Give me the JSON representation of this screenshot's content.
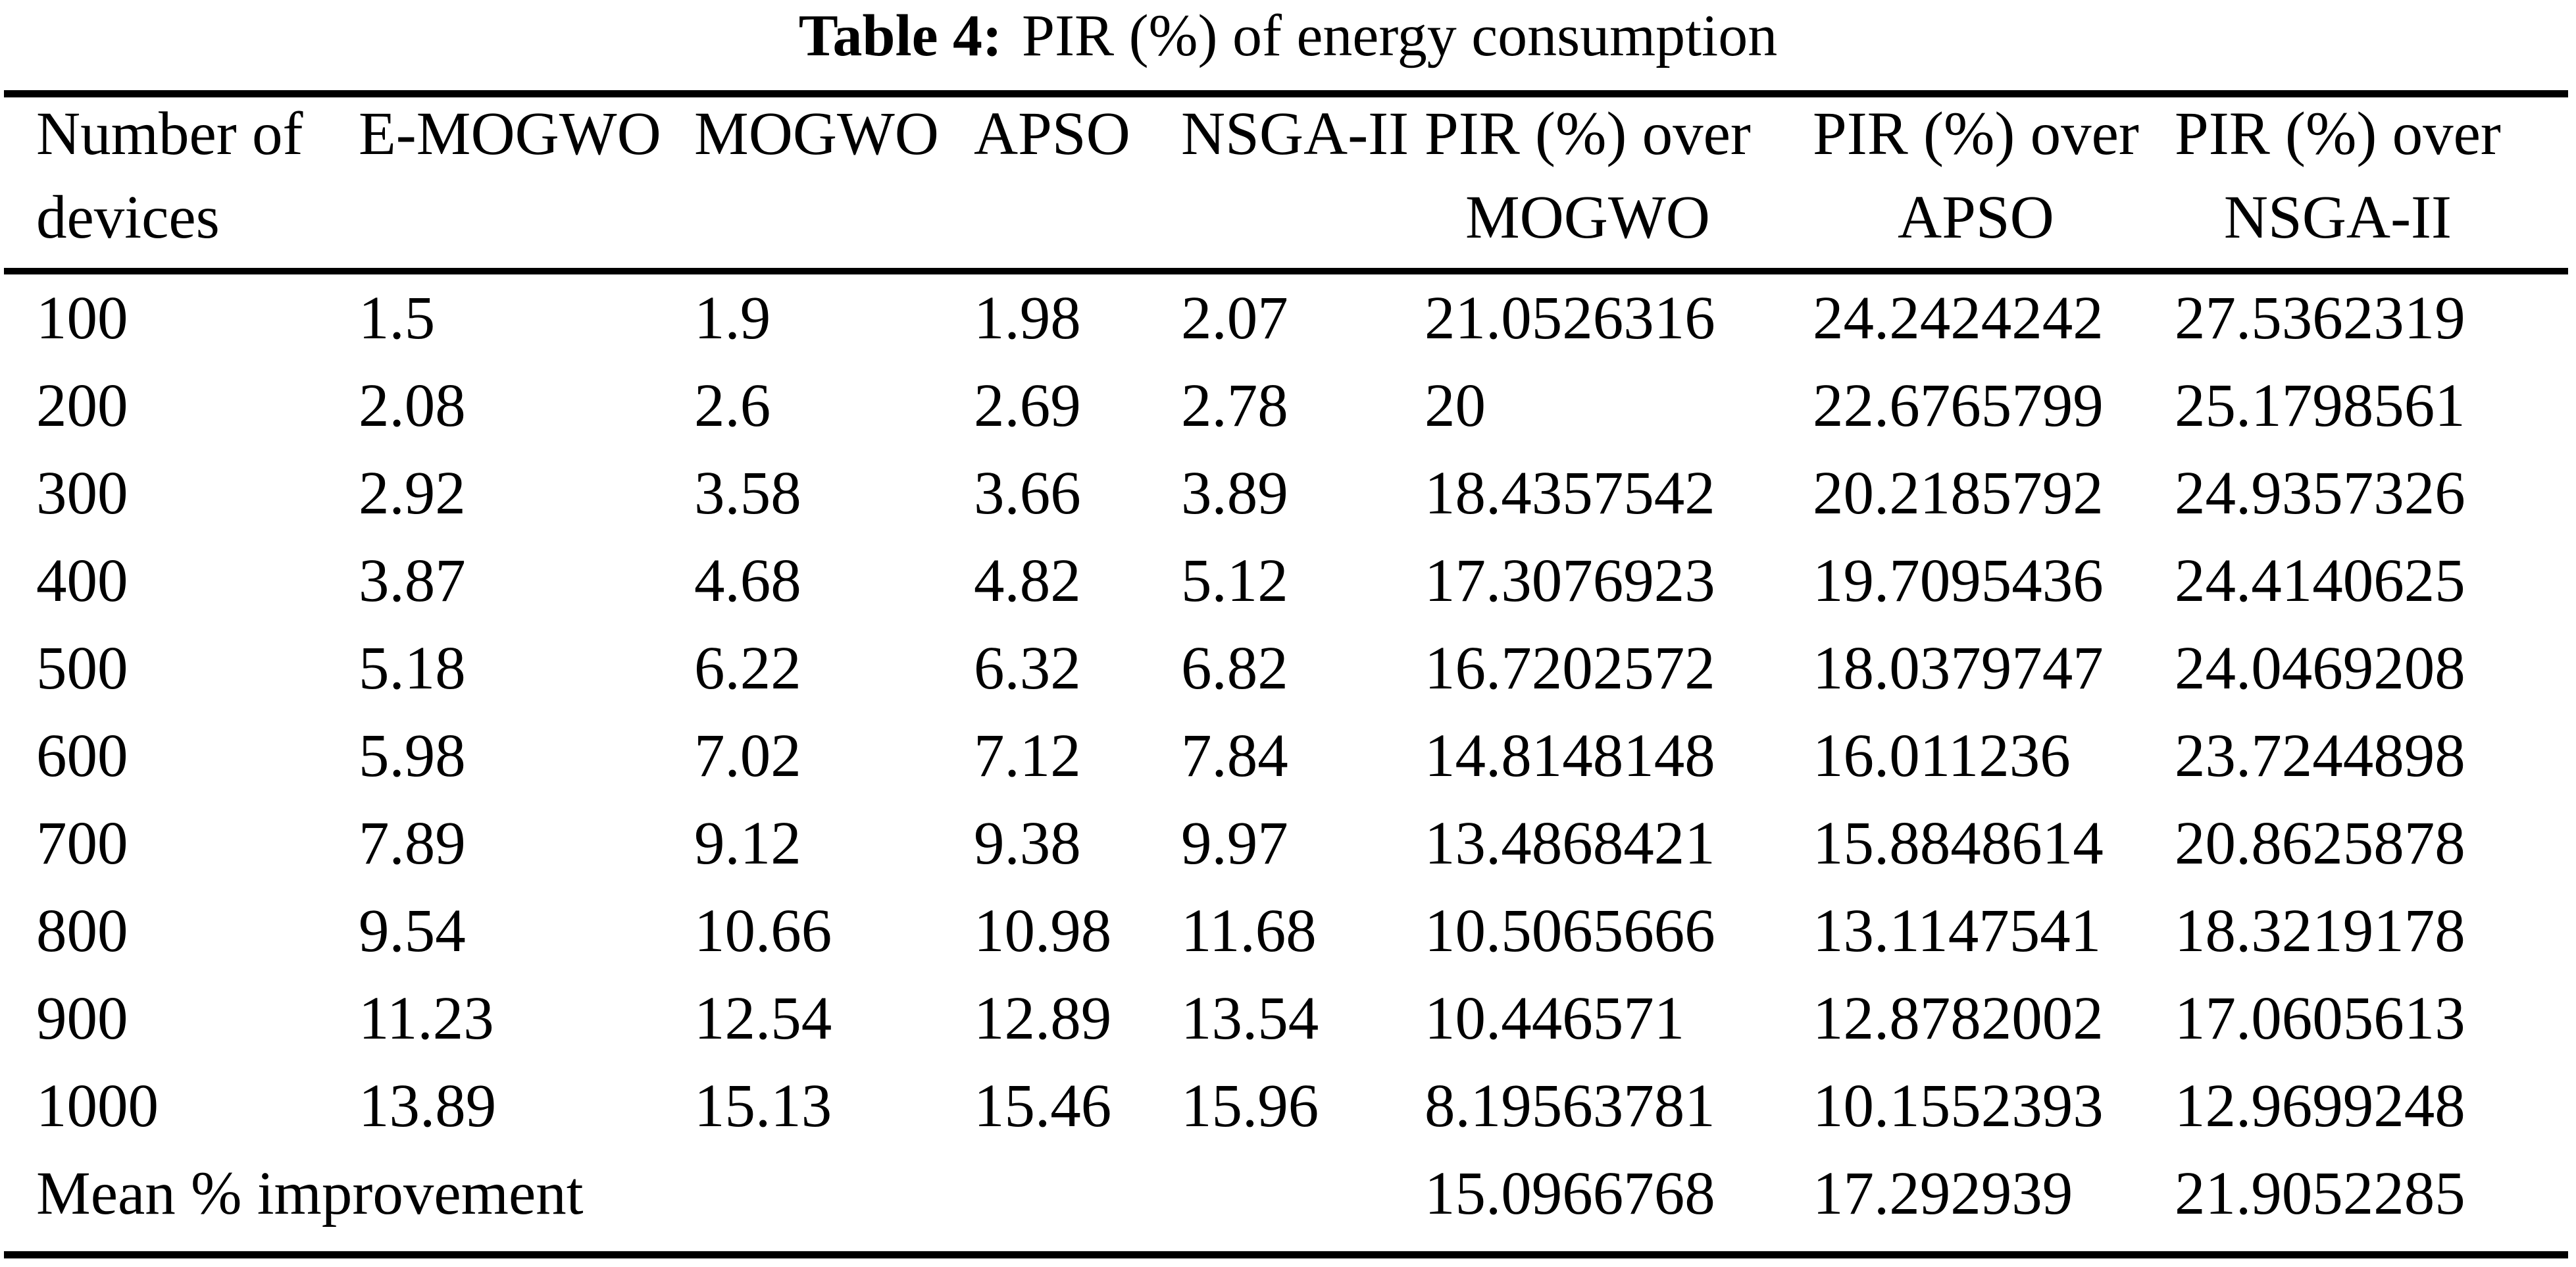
{
  "caption": {
    "label": "Table 4:",
    "text": "PIR (%) of energy consumption"
  },
  "table": {
    "columns": [
      {
        "line1": "Number of",
        "line2": "devices"
      },
      {
        "line1": "E-MOGWO",
        "line2": ""
      },
      {
        "line1": "MOGWO",
        "line2": ""
      },
      {
        "line1": "APSO",
        "line2": ""
      },
      {
        "line1": "NSGA-II",
        "line2": ""
      },
      {
        "line1": "PIR (%) over",
        "line2": "MOGWO"
      },
      {
        "line1": "PIR (%) over",
        "line2": "APSO"
      },
      {
        "line1": "PIR (%) over",
        "line2": "NSGA-II"
      }
    ],
    "rows": [
      [
        "100",
        "1.5",
        "1.9",
        "1.98",
        "2.07",
        "21.0526316",
        "24.2424242",
        "27.5362319"
      ],
      [
        "200",
        "2.08",
        "2.6",
        "2.69",
        "2.78",
        "20",
        "22.6765799",
        "25.1798561"
      ],
      [
        "300",
        "2.92",
        "3.58",
        "3.66",
        "3.89",
        "18.4357542",
        "20.2185792",
        "24.9357326"
      ],
      [
        "400",
        "3.87",
        "4.68",
        "4.82",
        "5.12",
        "17.3076923",
        "19.7095436",
        "24.4140625"
      ],
      [
        "500",
        "5.18",
        "6.22",
        "6.32",
        "6.82",
        "16.7202572",
        "18.0379747",
        "24.0469208"
      ],
      [
        "600",
        "5.98",
        "7.02",
        "7.12",
        "7.84",
        "14.8148148",
        "16.011236",
        "23.7244898"
      ],
      [
        "700",
        "7.89",
        "9.12",
        "9.38",
        "9.97",
        "13.4868421",
        "15.8848614",
        "20.8625878"
      ],
      [
        "800",
        "9.54",
        "10.66",
        "10.98",
        "11.68",
        "10.5065666",
        "13.1147541",
        "18.3219178"
      ],
      [
        "900",
        "11.23",
        "12.54",
        "12.89",
        "13.54",
        "10.446571",
        "12.8782002",
        "17.0605613"
      ],
      [
        "1000",
        "13.89",
        "15.13",
        "15.46",
        "15.96",
        "8.19563781",
        "10.1552393",
        "12.9699248"
      ]
    ],
    "footer": {
      "label": "Mean % improvement",
      "values": [
        "15.0966768",
        "17.292939",
        "21.9052285"
      ]
    }
  },
  "colors": {
    "text": "#000000",
    "background": "#ffffff",
    "rule": "#000000"
  }
}
